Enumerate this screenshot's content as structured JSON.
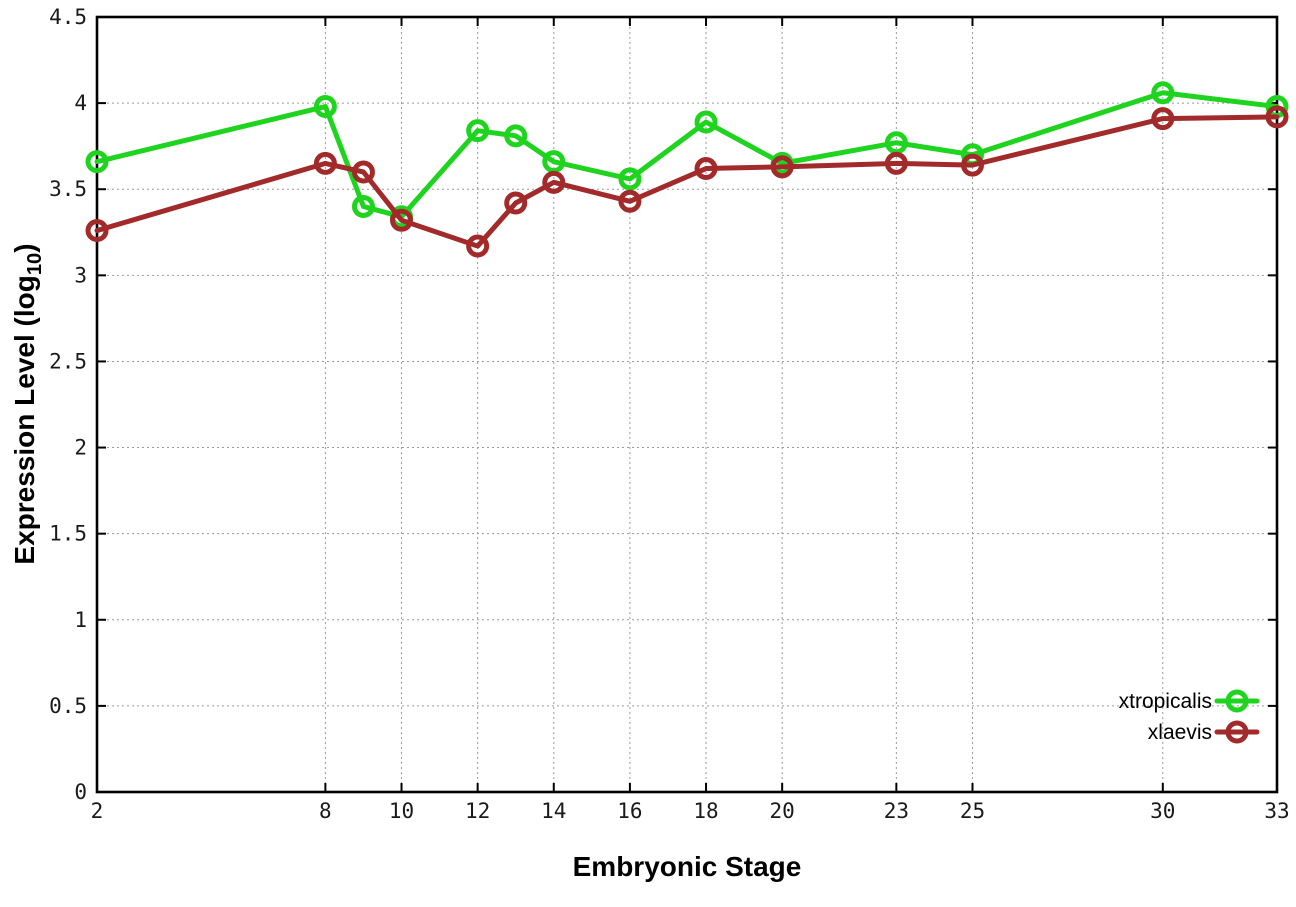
{
  "chart_data": {
    "type": "line",
    "title": "",
    "xlabel": "Embryonic Stage",
    "ylabel": "Expression Level (log10)",
    "ylabel_parts": {
      "prefix": "Expression Level (log",
      "sub": "10",
      "suffix": ")"
    },
    "x": [
      2,
      8,
      9,
      10,
      12,
      13,
      14,
      16,
      18,
      20,
      23,
      25,
      30,
      33
    ],
    "series": [
      {
        "name": "xtropicalis",
        "color": "#1fd41f",
        "values": [
          3.66,
          3.98,
          3.4,
          3.34,
          3.84,
          3.81,
          3.66,
          3.56,
          3.89,
          3.65,
          3.77,
          3.7,
          4.06,
          3.98
        ]
      },
      {
        "name": "xlaevis",
        "color": "#a22a2a",
        "values": [
          3.26,
          3.65,
          3.6,
          3.32,
          3.17,
          3.42,
          3.54,
          3.43,
          3.62,
          3.63,
          3.65,
          3.64,
          3.91,
          3.92
        ]
      }
    ],
    "xlim": [
      2,
      33
    ],
    "ylim": [
      0,
      4.5
    ],
    "xticks": [
      2,
      8,
      10,
      12,
      14,
      16,
      18,
      20,
      23,
      25,
      30,
      33
    ],
    "xtick_labels": [
      "2",
      "8",
      "10",
      "12",
      "14",
      "16",
      "18",
      "20",
      "23",
      "25",
      "30",
      "33"
    ],
    "yticks": [
      0,
      0.5,
      1,
      1.5,
      2,
      2.5,
      3,
      3.5,
      4,
      4.5
    ],
    "ytick_labels": [
      "0",
      "0.5",
      "1",
      "1.5",
      "2",
      "2.5",
      "3",
      "3.5",
      "4",
      "4.5"
    ],
    "grid": true,
    "legend_position": "bottom-right-inside",
    "marker": "open-circle"
  },
  "colors": {
    "background": "#ffffff",
    "grid": "#9a9a9a",
    "border": "#000000",
    "tick_text": "#1a1a1a"
  }
}
